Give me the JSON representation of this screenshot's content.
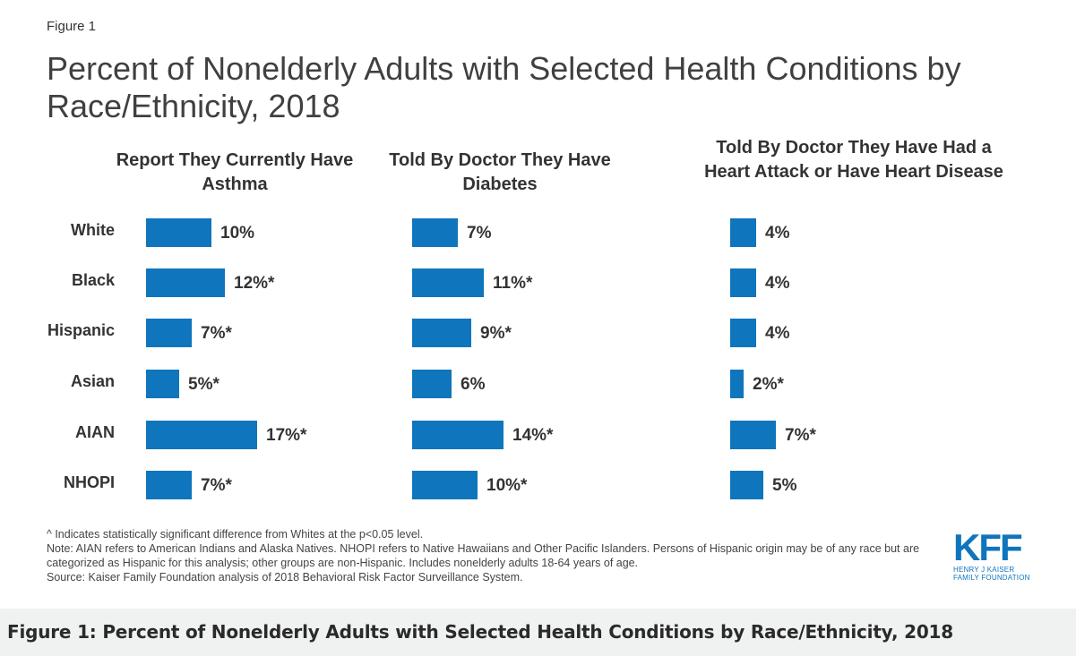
{
  "figure_label": "Figure 1",
  "caption": "Figure 1: Percent of Nonelderly Adults with Selected Health Conditions by Race/Ethnicity, 2018",
  "colors": {
    "bar": "#0f75bc",
    "caption_bg": "#f0f1f1"
  },
  "notes": {
    "significance": "^ Indicates statistically significant difference from Whites at the p<0.05 level.",
    "note": "Note: AIAN refers to American Indians and Alaska Natives. NHOPI refers to Native Hawaiians and Other Pacific Islanders. Persons of Hispanic origin may be of any race but are categorized as Hispanic for this analysis; other groups are non-Hispanic. Includes nonelderly adults 18-64 years of age.",
    "source": "Source: Kaiser Family Foundation analysis of 2018 Behavioral Risk Factor Surveillance System."
  },
  "logo": {
    "mark": "KFF",
    "line1": "HENRY J KAISER",
    "line2": "FAMILY FOUNDATION"
  },
  "chart_data": {
    "type": "bar",
    "orientation": "horizontal",
    "title": "Percent of Nonelderly Adults with Selected Health Conditions by Race/Ethnicity, 2018",
    "categories": [
      "White",
      "Black",
      "Hispanic",
      "Asian",
      "AIAN",
      "NHOPI"
    ],
    "series": [
      {
        "name": "Report They Currently Have Asthma",
        "values": [
          10,
          12,
          7,
          5,
          17,
          7
        ],
        "labels": [
          "10%",
          "12%*",
          "7%*",
          "5%*",
          "17%*",
          "7%*"
        ]
      },
      {
        "name": "Told By Doctor They Have Diabetes",
        "values": [
          7,
          11,
          9,
          6,
          14,
          10
        ],
        "labels": [
          "7%",
          "11%*",
          "9%*",
          "6%",
          "14%*",
          "10%*"
        ]
      },
      {
        "name": "Told By Doctor They Have Had a Heart Attack or Have Heart Disease",
        "values": [
          4,
          4,
          4,
          2,
          7,
          5
        ],
        "labels": [
          "4%",
          "4%",
          "4%",
          "2%*",
          "7%*",
          "5%"
        ]
      }
    ],
    "xlabel": "",
    "ylabel": "",
    "grid": false
  }
}
